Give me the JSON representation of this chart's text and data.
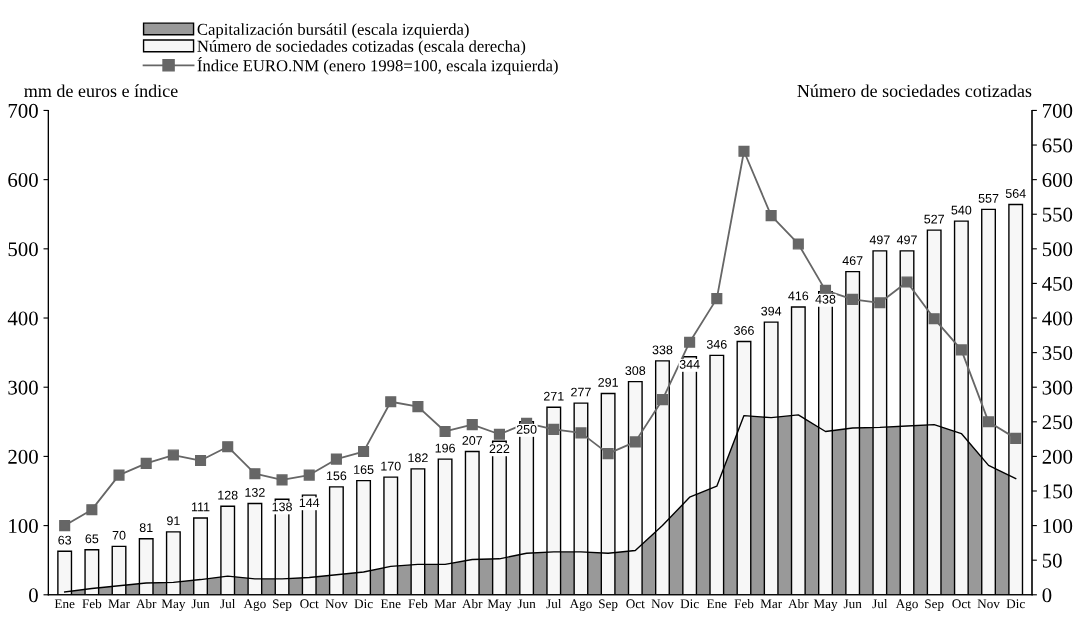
{
  "chart_data": {
    "type": "bar",
    "categories": [
      "Ene",
      "Feb",
      "Mar",
      "Abr",
      "May",
      "Jun",
      "Jul",
      "Ago",
      "Sep",
      "Oct",
      "Nov",
      "Dic",
      "Ene",
      "Feb",
      "Mar",
      "Abr",
      "May",
      "Jun",
      "Jul",
      "Ago",
      "Sep",
      "Oct",
      "Nov",
      "Dic",
      "Ene",
      "Feb",
      "Mar",
      "Abr",
      "May",
      "Jun",
      "Jul",
      "Ago",
      "Sep",
      "Oct",
      "Nov",
      "Dic"
    ],
    "series": [
      {
        "name": "Capitalización bursátil (escala izquierda)",
        "type": "area",
        "color": "#999999",
        "values": [
          4,
          9,
          13,
          17,
          18,
          22,
          27,
          23,
          23,
          25,
          29,
          33,
          41,
          44,
          44,
          51,
          52,
          60,
          62,
          62,
          60,
          64,
          100,
          141,
          157,
          259,
          256,
          260,
          236,
          241,
          242,
          244,
          246,
          233,
          187,
          168
        ]
      },
      {
        "name": "Número de sociedades cotizadas (escala derecha)",
        "axis": "y2",
        "color": "#f7f7f7",
        "values": [
          63,
          65,
          70,
          81,
          91,
          111,
          128,
          132,
          138,
          144,
          156,
          165,
          170,
          182,
          196,
          207,
          222,
          250,
          271,
          277,
          291,
          308,
          338,
          344,
          346,
          366,
          394,
          416,
          438,
          467,
          497,
          497,
          527,
          540,
          557,
          564
        ],
        "value_labels": [
          "63",
          "65",
          "70",
          "81",
          "91",
          "111",
          "128",
          "132",
          "138",
          "144",
          "156",
          "165",
          "170",
          "182",
          "196",
          "207",
          "222",
          "250",
          "271",
          "277",
          "291",
          "308",
          "338",
          "344",
          "346",
          "366",
          "394",
          "416",
          "438",
          "467",
          "497",
          "497",
          "527",
          "540",
          "557",
          "564"
        ]
      },
      {
        "name": "Índice EURO.NM (enero 1998=100, escala izquierda)",
        "type": "line",
        "color": "#666666",
        "marker": "square",
        "values": [
          100,
          123,
          173,
          190,
          202,
          194,
          214,
          175,
          166,
          173,
          196,
          207,
          279,
          272,
          236,
          246,
          232,
          248,
          239,
          234,
          204,
          221,
          282,
          365,
          428,
          641,
          548,
          507,
          440,
          427,
          422,
          452,
          399,
          354,
          250,
          226
        ]
      }
    ],
    "ylabel": "mm de euros e índice",
    "y2label": "Número de sociedades cotizadas",
    "ylim": [
      0,
      700
    ],
    "yticks": [
      0,
      100,
      200,
      300,
      400,
      500,
      600,
      700
    ],
    "y2lim": [
      0,
      700
    ],
    "y2ticks": [
      0,
      50,
      100,
      150,
      200,
      250,
      300,
      350,
      400,
      450,
      500,
      550,
      600,
      650,
      700
    ],
    "legend": "top left",
    "grid": false
  }
}
